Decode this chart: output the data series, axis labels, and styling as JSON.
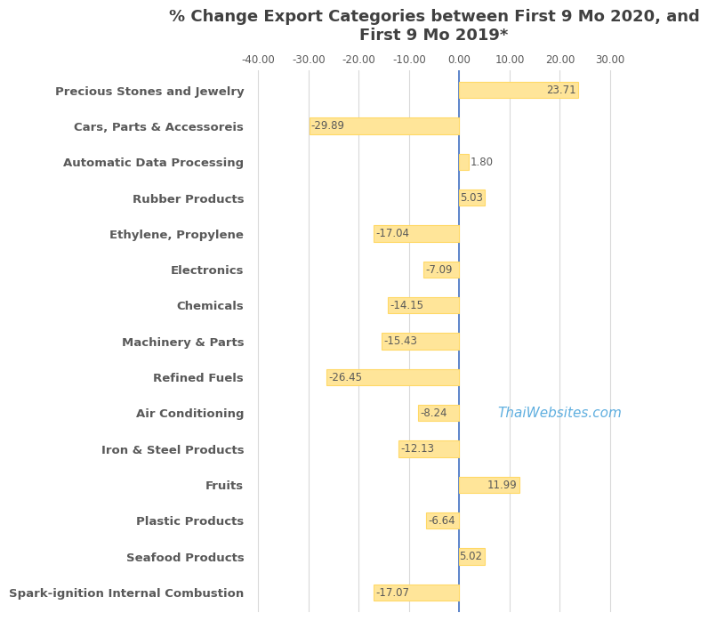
{
  "title": "% Change Export Categories between First 9 Mo 2020, and\nFirst 9 Mo 2019*",
  "categories": [
    "Precious Stones and Jewelry",
    "Cars, Parts & Accessoreis",
    "Automatic Data Processing",
    "Rubber Products",
    "Ethylene, Propylene",
    "Electronics",
    "Chemicals",
    "Machinery & Parts",
    "Refined Fuels",
    "Air Conditioning",
    "Iron & Steel Products",
    "Fruits",
    "Plastic Products",
    "Seafood Products",
    "Spark-ignition Internal Combustion"
  ],
  "values": [
    23.71,
    -29.89,
    1.8,
    5.03,
    -17.04,
    -7.09,
    -14.15,
    -15.43,
    -26.45,
    -8.24,
    -12.13,
    11.99,
    -6.64,
    5.02,
    -17.07
  ],
  "bar_color": "#FFE599",
  "bar_edge_color": "#FFD966",
  "label_color": "#595959",
  "zero_line_color": "#4472C4",
  "grid_color": "#D9D9D9",
  "background_color": "#FFFFFF",
  "watermark_text": "ThaiWebsites.com",
  "watermark_color": "#4EA6DC",
  "xlim": [
    -42,
    32
  ],
  "xticks": [
    -40,
    -30,
    -20,
    -10,
    0,
    10,
    20,
    30
  ],
  "xtick_labels": [
    "-40.00",
    "-30.00",
    "-20.00",
    "-10.00",
    "0.00",
    "10.00",
    "20.00",
    "30.00"
  ],
  "title_fontsize": 13,
  "category_fontsize": 9.5,
  "value_fontsize": 8.5,
  "tick_fontsize": 8.5,
  "category_label_color": "#595959",
  "title_color": "#404040"
}
